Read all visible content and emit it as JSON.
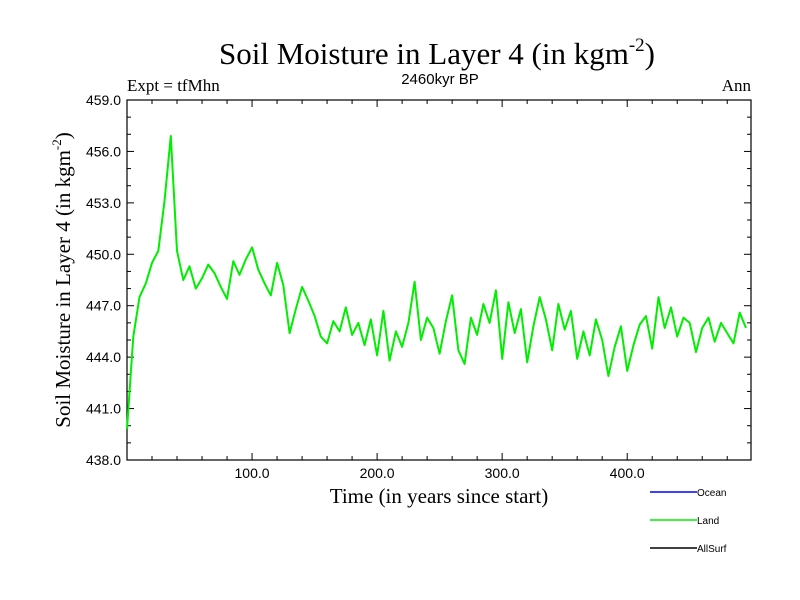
{
  "header": {
    "title_main": "Soil Moisture in Layer 4 (in kgm",
    "title_sup": "-2",
    "title_close": ")",
    "subtitle": "2460kyr BP",
    "left_label": "Expt = tfMhn",
    "right_label": "Ann"
  },
  "chart_data": {
    "type": "line",
    "title": "Soil Moisture in Layer 4 (in kgm-2)",
    "subtitle": "2460kyr BP",
    "xlabel": "Time (in years since start)",
    "ylabel_main": "Soil Moisture in Layer 4 (in kgm",
    "ylabel_sup": "-2",
    "ylabel_close": ")",
    "xlim": [
      0,
      499
    ],
    "ylim": [
      438.0,
      459.0
    ],
    "x_ticks": [
      100,
      200,
      300,
      400
    ],
    "x_tick_labels": [
      "100.0",
      "200.0",
      "300.0",
      "400.0"
    ],
    "y_ticks": [
      438,
      441,
      444,
      447,
      450,
      453,
      456,
      459
    ],
    "y_tick_labels": [
      "438.0",
      "441.0",
      "444.0",
      "447.0",
      "450.0",
      "453.0",
      "456.0",
      "459.0"
    ],
    "legend": [
      {
        "name": "Ocean",
        "color": "#0000ff"
      },
      {
        "name": "Land",
        "color": "#00ee00"
      },
      {
        "name": "AllSurf",
        "color": "#000000"
      }
    ],
    "series": [
      {
        "name": "Land",
        "color": "#00ee00",
        "x_start": 0,
        "x_step": 5,
        "values": [
          439.8,
          445.2,
          447.5,
          448.3,
          449.5,
          450.2,
          453.1,
          456.9,
          450.2,
          448.5,
          449.3,
          448.0,
          448.6,
          449.4,
          448.9,
          448.1,
          447.4,
          449.6,
          448.8,
          449.7,
          450.4,
          449.1,
          448.3,
          447.6,
          449.5,
          448.2,
          445.4,
          446.8,
          448.1,
          447.3,
          446.4,
          445.2,
          444.8,
          446.1,
          445.5,
          446.9,
          445.3,
          446.0,
          444.7,
          446.2,
          444.1,
          446.7,
          443.8,
          445.5,
          444.6,
          446.0,
          448.4,
          445.0,
          446.3,
          445.7,
          444.2,
          446.1,
          447.6,
          444.4,
          443.6,
          446.3,
          445.3,
          447.1,
          446.0,
          447.9,
          443.9,
          447.2,
          445.4,
          446.8,
          443.7,
          445.8,
          447.5,
          446.2,
          444.4,
          447.1,
          445.6,
          446.7,
          443.9,
          445.5,
          444.1,
          446.2,
          445.0,
          442.9,
          444.6,
          445.8,
          443.2,
          444.7,
          445.9,
          446.4,
          444.5,
          447.5,
          445.7,
          446.9,
          445.2,
          446.3,
          446.0,
          444.3,
          445.7,
          446.3,
          444.9,
          446.0,
          445.4,
          444.8,
          446.6,
          445.7
        ]
      }
    ]
  }
}
